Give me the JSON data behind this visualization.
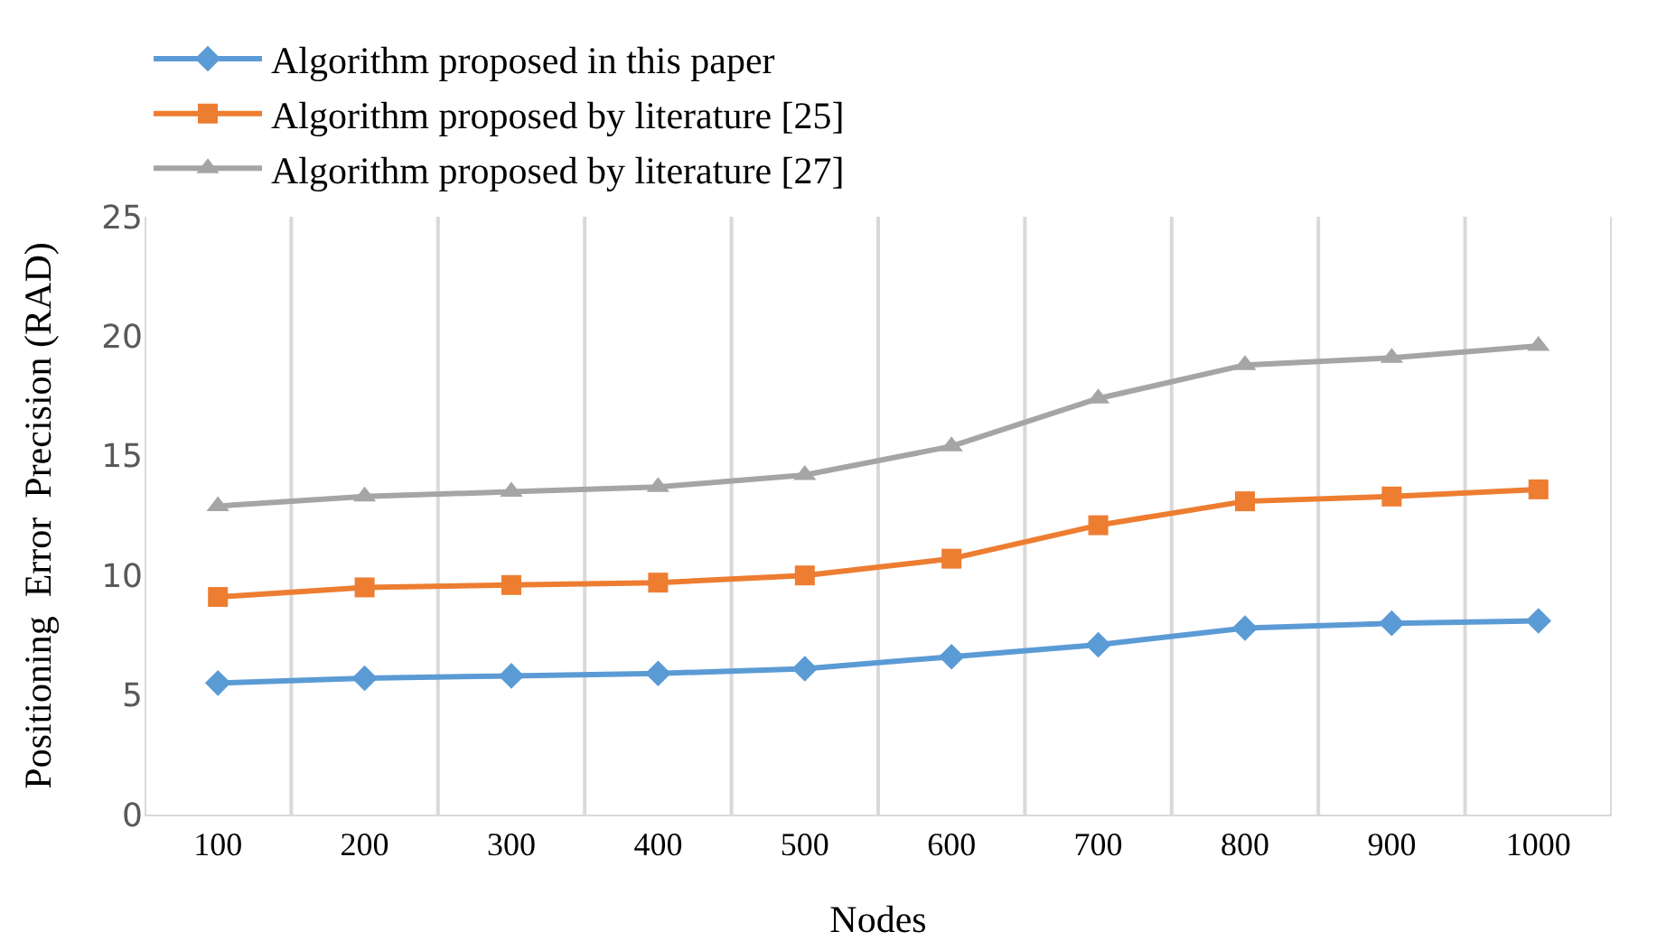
{
  "chart_data": {
    "type": "line",
    "xlabel": "Nodes",
    "ylabel": "Positioning  Error  Precision (RAD)",
    "categories": [
      "100",
      "200",
      "300",
      "400",
      "500",
      "600",
      "700",
      "800",
      "900",
      "1000"
    ],
    "series": [
      {
        "name": "Algorithm proposed in this paper",
        "color": "#5b9bd5",
        "marker": "diamond",
        "values": [
          5.5,
          5.7,
          5.8,
          5.9,
          6.1,
          6.6,
          7.1,
          7.8,
          8.0,
          8.1
        ]
      },
      {
        "name": "Algorithm proposed by literature [25]",
        "color": "#ed7d31",
        "marker": "square",
        "values": [
          9.1,
          9.5,
          9.6,
          9.7,
          10.0,
          10.7,
          12.1,
          13.1,
          13.3,
          13.6
        ]
      },
      {
        "name": "Algorithm proposed by literature [27]",
        "color": "#a5a5a5",
        "marker": "triangle",
        "values": [
          12.9,
          13.3,
          13.5,
          13.7,
          14.2,
          15.4,
          17.4,
          18.8,
          19.1,
          19.6
        ]
      }
    ],
    "ylim": [
      0,
      25
    ],
    "yticks": [
      0,
      5,
      10,
      15,
      20,
      25
    ],
    "grid": "x",
    "legend": "top",
    "line_style": "solid"
  }
}
